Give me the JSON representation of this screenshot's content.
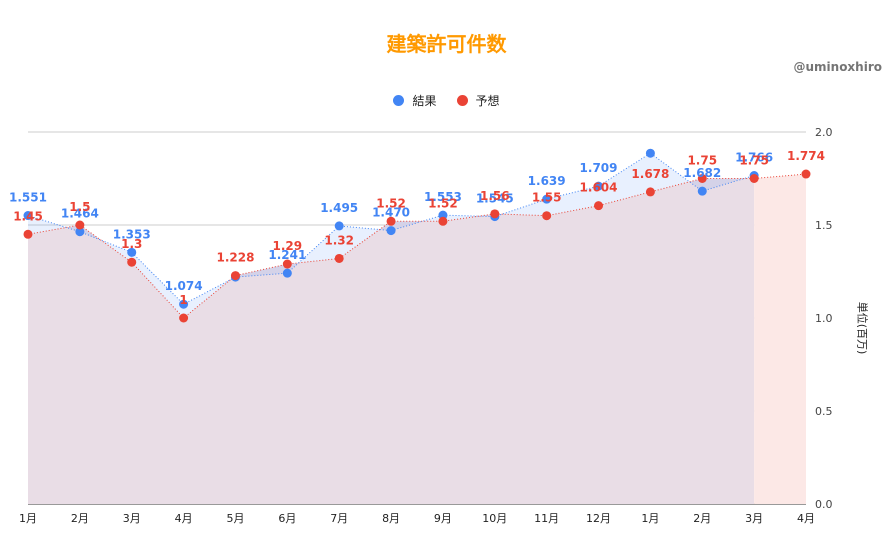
{
  "title": "建築許可件数",
  "credit": "@uminoxhiro",
  "colors": {
    "result": "#4285f4",
    "forecast": "#ea4335",
    "title": "#ff9900"
  },
  "legend": {
    "result_label": "結果",
    "forecast_label": "予想"
  },
  "chart_data": {
    "type": "line",
    "title": "建築許可件数",
    "categories": [
      "1月",
      "2月",
      "3月",
      "4月",
      "5月",
      "6月",
      "7月",
      "8月",
      "9月",
      "10月",
      "11月",
      "12月",
      "1月",
      "2月",
      "3月",
      "4月"
    ],
    "series": [
      {
        "name": "結果",
        "values": [
          1.551,
          1.464,
          1.353,
          1.074,
          1.22,
          1.241,
          1.495,
          1.47,
          1.553,
          1.545,
          1.639,
          1.709,
          1.886,
          1.682,
          1.766,
          null
        ],
        "labels": [
          "1.551",
          "1.464",
          "1.353",
          "1.074",
          "",
          "1.241",
          "1.495",
          "1.470",
          "1.553",
          "1.545",
          "1.639",
          "1.709",
          "",
          "1.682",
          "1.766",
          ""
        ]
      },
      {
        "name": "予想",
        "values": [
          1.45,
          1.5,
          1.3,
          1.0,
          1.228,
          1.29,
          1.32,
          1.52,
          1.52,
          1.56,
          1.55,
          1.604,
          1.678,
          1.75,
          1.75,
          1.774
        ],
        "labels": [
          "1.45",
          "1.5",
          "1.3",
          "1",
          "1.228",
          "1.29",
          "1.32",
          "1.52",
          "1.52",
          "1.56",
          "1.55",
          "1.604",
          "1.678",
          "1.75",
          "1.75",
          "1.774"
        ]
      }
    ],
    "ylabel": "単位(百万)",
    "ylim": [
      0,
      2.0
    ],
    "yticks": [
      "0.0",
      "0.5",
      "1.0",
      "1.5",
      "2.0"
    ],
    "grid": true,
    "legend_position": "top"
  }
}
